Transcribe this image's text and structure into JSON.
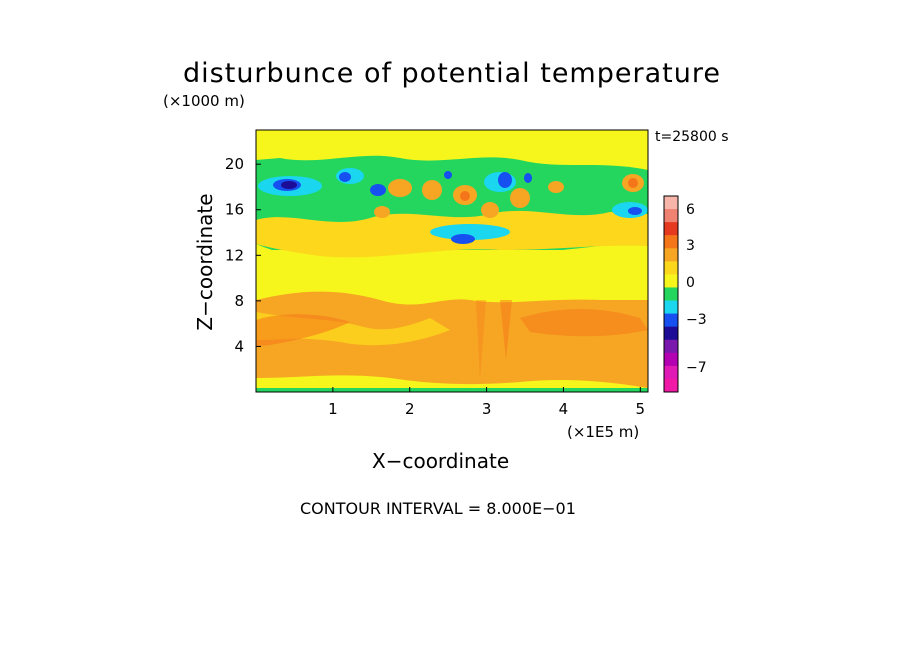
{
  "chart_data": {
    "type": "heatmap",
    "title": "disturbunce of potential temperature",
    "xlabel": "X−coordinate",
    "ylabel": "Z−coordinate",
    "x_multiplier": "(×1E5 m)",
    "y_multiplier": "(×1000 m)",
    "time_label": "t=25800 s",
    "contour_interval_label": "CONTOUR INTERVAL = 8.000E−01",
    "xlim": [
      0,
      5.1
    ],
    "ylim": [
      0,
      23
    ],
    "xticks": [
      1,
      2,
      3,
      4,
      5
    ],
    "yticks": [
      4,
      8,
      12,
      16,
      20
    ],
    "colorbar": {
      "levels_top_to_bottom": [
        "#f7b4a8",
        "#f08272",
        "#e53a20",
        "#f5761a",
        "#f6a623",
        "#fdd71c",
        "#f6f61c",
        "#24d65e",
        "#1ad6ef",
        "#1650f0",
        "#1c0c96",
        "#7a18ad",
        "#b200b2",
        "#e01ab4",
        "#f01aa6"
      ],
      "tick_labels": [
        "6",
        "3",
        "0",
        "−3",
        "−7"
      ]
    },
    "dominant_bands": [
      {
        "z_range": [
          0,
          1
        ],
        "value": "near 0 (yellow, green at surface)"
      },
      {
        "z_range": [
          2,
          9
        ],
        "value": "positive ~1.5-3 (orange)"
      },
      {
        "z_range": [
          9,
          13
        ],
        "value": "near 0 (yellow)"
      },
      {
        "z_range": [
          13,
          22
        ],
        "value": "wave pattern, -4 to +3 (green/cyan/blue/orange)"
      }
    ]
  }
}
